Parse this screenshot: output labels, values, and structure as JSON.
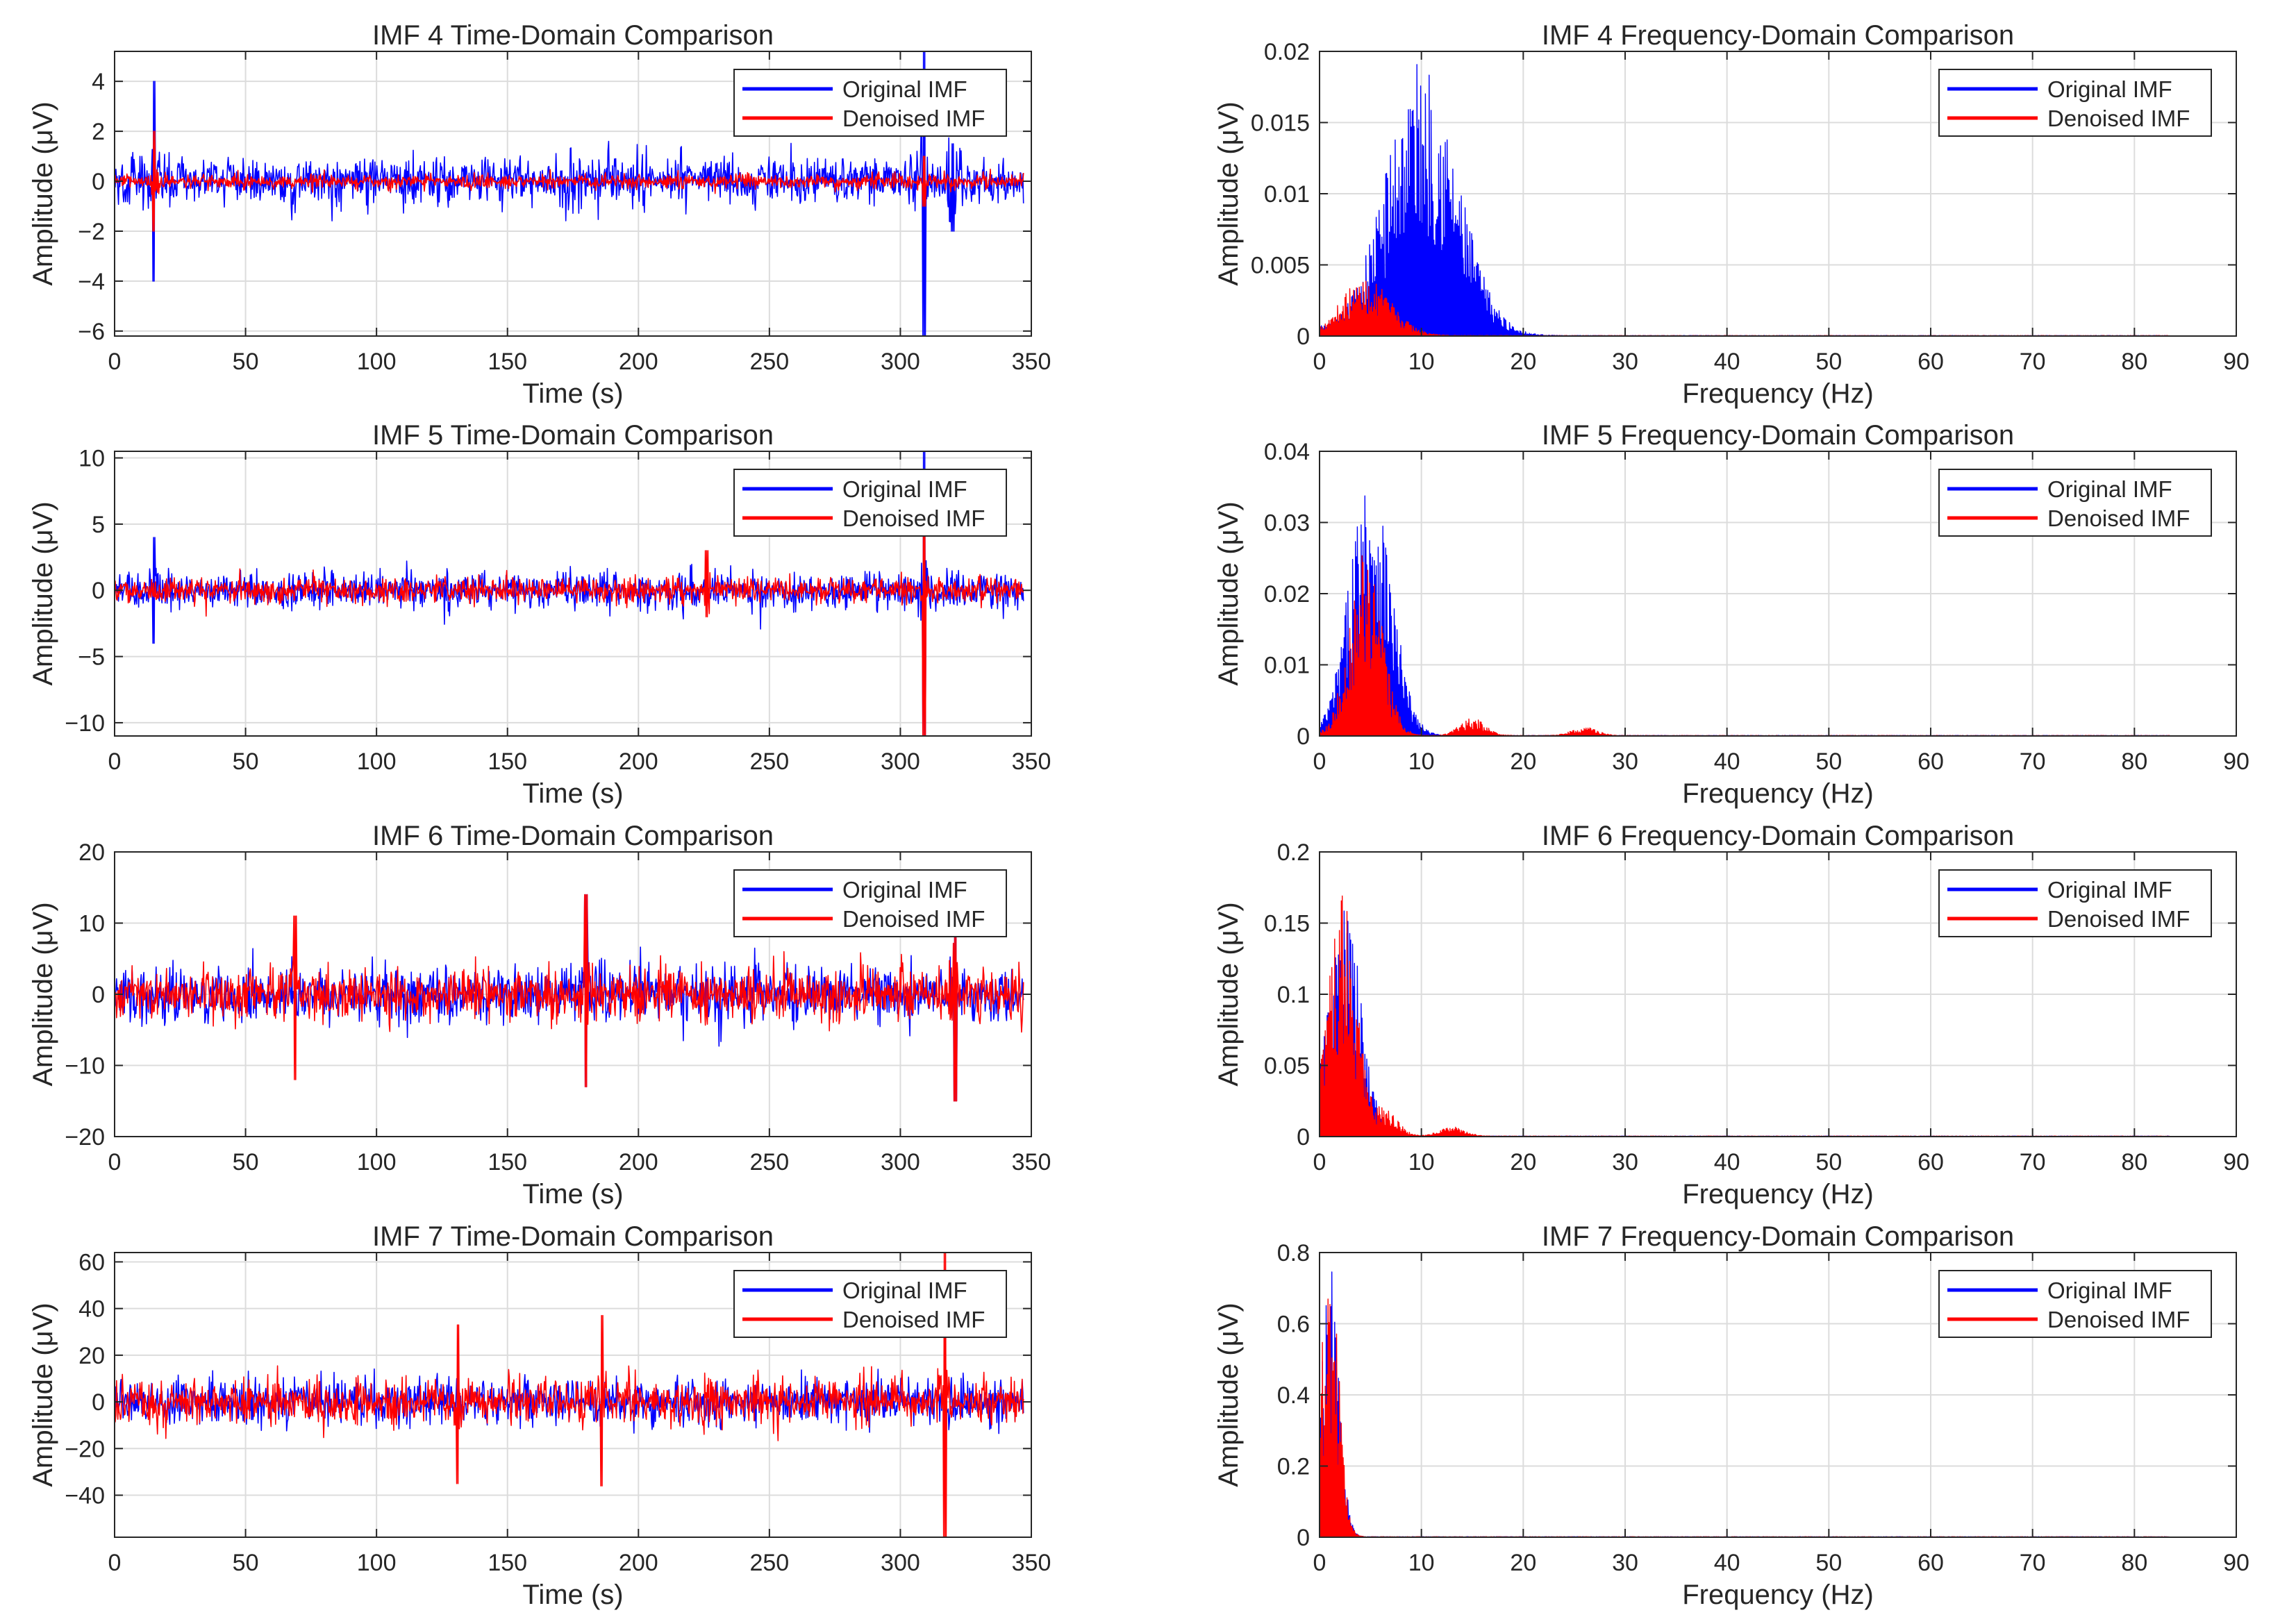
{
  "colors": {
    "original": "#0000FF",
    "denoised": "#FF0000",
    "grid": "#DCDCDC",
    "axis": "#262626"
  },
  "chart_data": [
    {
      "id": "imf4-time",
      "type": "line",
      "title": "IMF 4 Time-Domain Comparison",
      "xlabel": "Time (s)",
      "ylabel": "Amplitude (μV)",
      "xlim": [
        0,
        350
      ],
      "ylim": [
        -6.2,
        5.2
      ],
      "xticks": [
        0,
        50,
        100,
        150,
        200,
        250,
        300,
        350
      ],
      "yticks": [
        -6,
        -4,
        -2,
        0,
        2,
        4
      ],
      "ytick_labels": [
        "−6",
        "−4",
        "−2",
        "0",
        "2",
        "4"
      ],
      "grid": true,
      "legend_position": "top-right",
      "signal_extent": [
        0,
        347
      ],
      "series": [
        {
          "name": "Original IMF",
          "color": "#0000FF",
          "typical_amplitude": 1.0,
          "events": [
            {
              "x": 15,
              "peak": 4.0,
              "trough": -4.0
            },
            {
              "x": 309,
              "peak": 5.2,
              "trough": -6.2
            },
            {
              "x": 320,
              "peak": 1.5,
              "trough": -2.0
            }
          ]
        },
        {
          "name": "Denoised IMF",
          "color": "#FF0000",
          "typical_amplitude": 0.3,
          "events": [
            {
              "x": 15,
              "peak": 2.0,
              "trough": -2.0
            },
            {
              "x": 309,
              "peak": 1.0,
              "trough": -1.0
            }
          ]
        }
      ]
    },
    {
      "id": "imf4-freq",
      "type": "area",
      "title": "IMF 4 Frequency-Domain Comparison",
      "xlabel": "Frequency (Hz)",
      "ylabel": "Amplitude (μV)",
      "xlim": [
        0,
        90
      ],
      "ylim": [
        0,
        0.02
      ],
      "xticks": [
        0,
        10,
        20,
        30,
        40,
        50,
        60,
        70,
        80,
        90
      ],
      "yticks": [
        0,
        0.005,
        0.01,
        0.015,
        0.02
      ],
      "ytick_labels": [
        "0",
        "0.005",
        "0.01",
        "0.015",
        "0.02"
      ],
      "grid": true,
      "legend_position": "top-right",
      "signal_extent": [
        0,
        83.5
      ],
      "series": [
        {
          "name": "Original IMF",
          "color": "#0000FF",
          "peak_frequency": 10,
          "peak_amplitude": 0.0195,
          "width": 3.5
        },
        {
          "name": "Denoised IMF",
          "color": "#FF0000",
          "peak_frequency": 4.5,
          "peak_amplitude": 0.004,
          "width": 2.5
        }
      ]
    },
    {
      "id": "imf5-time",
      "type": "line",
      "title": "IMF 5 Time-Domain Comparison",
      "xlabel": "Time (s)",
      "ylabel": "Amplitude (μV)",
      "xlim": [
        0,
        350
      ],
      "ylim": [
        -11,
        10.5
      ],
      "xticks": [
        0,
        50,
        100,
        150,
        200,
        250,
        300,
        350
      ],
      "yticks": [
        -10,
        -5,
        0,
        5,
        10
      ],
      "ytick_labels": [
        "−10",
        "−5",
        "0",
        "5",
        "10"
      ],
      "grid": true,
      "legend_position": "top-right",
      "signal_extent": [
        0,
        347
      ],
      "series": [
        {
          "name": "Original IMF",
          "color": "#0000FF",
          "typical_amplitude": 1.5,
          "events": [
            {
              "x": 15,
              "peak": 4.0,
              "trough": -4.0
            },
            {
              "x": 309,
              "peak": 10.5,
              "trough": -11.0
            }
          ]
        },
        {
          "name": "Denoised IMF",
          "color": "#FF0000",
          "typical_amplitude": 1.0,
          "events": [
            {
              "x": 309,
              "peak": 8.0,
              "trough": -11.0
            },
            {
              "x": 226,
              "peak": 3.0,
              "trough": -2.0
            }
          ]
        }
      ]
    },
    {
      "id": "imf5-freq",
      "type": "area",
      "title": "IMF 5 Frequency-Domain Comparison",
      "xlabel": "Frequency (Hz)",
      "ylabel": "Amplitude (μV)",
      "xlim": [
        0,
        90
      ],
      "ylim": [
        0,
        0.04
      ],
      "xticks": [
        0,
        10,
        20,
        30,
        40,
        50,
        60,
        70,
        80,
        90
      ],
      "yticks": [
        0,
        0.01,
        0.02,
        0.03,
        0.04
      ],
      "ytick_labels": [
        "0",
        "0.01",
        "0.02",
        "0.03",
        "0.04"
      ],
      "grid": true,
      "legend_position": "top-right",
      "signal_extent": [
        0,
        83.5
      ],
      "series": [
        {
          "name": "Original IMF",
          "color": "#0000FF",
          "peak_frequency": 5,
          "peak_amplitude": 0.039,
          "width": 2.0
        },
        {
          "name": "Denoised IMF",
          "color": "#FF0000",
          "peak_frequency": 4.5,
          "peak_amplitude": 0.026,
          "width": 1.6,
          "bumps": [
            {
              "f": 15,
              "a": 0.0025
            },
            {
              "f": 26,
              "a": 0.0012
            }
          ]
        }
      ]
    },
    {
      "id": "imf6-time",
      "type": "line",
      "title": "IMF 6 Time-Domain Comparison",
      "xlabel": "Time (s)",
      "ylabel": "Amplitude (μV)",
      "xlim": [
        0,
        350
      ],
      "ylim": [
        -20,
        20
      ],
      "xticks": [
        0,
        50,
        100,
        150,
        200,
        250,
        300,
        350
      ],
      "yticks": [
        -20,
        -10,
        0,
        10,
        20
      ],
      "ytick_labels": [
        "−20",
        "−10",
        "0",
        "10",
        "20"
      ],
      "grid": true,
      "legend_position": "top-right",
      "signal_extent": [
        0,
        347
      ],
      "series": [
        {
          "name": "Original IMF",
          "color": "#0000FF",
          "typical_amplitude": 4.0,
          "events": [
            {
              "x": 180,
              "peak": 14.0,
              "trough": -13.0
            },
            {
              "x": 321,
              "peak": 10.0,
              "trough": -15.0
            }
          ]
        },
        {
          "name": "Denoised IMF",
          "color": "#FF0000",
          "typical_amplitude": 3.8,
          "events": [
            {
              "x": 180,
              "peak": 14.0,
              "trough": -13.0
            },
            {
              "x": 321,
              "peak": 8.0,
              "trough": -15.0
            },
            {
              "x": 69,
              "peak": 11.0,
              "trough": -12.0
            }
          ]
        }
      ]
    },
    {
      "id": "imf6-freq",
      "type": "area",
      "title": "IMF 6 Frequency-Domain Comparison",
      "xlabel": "Frequency (Hz)",
      "ylabel": "Amplitude (μV)",
      "xlim": [
        0,
        90
      ],
      "ylim": [
        0,
        0.2
      ],
      "xticks": [
        0,
        10,
        20,
        30,
        40,
        50,
        60,
        70,
        80,
        90
      ],
      "yticks": [
        0,
        0.05,
        0.1,
        0.15,
        0.2
      ],
      "ytick_labels": [
        "0",
        "0.05",
        "0.1",
        "0.15",
        "0.2"
      ],
      "grid": true,
      "legend_position": "top-right",
      "signal_extent": [
        0,
        83.5
      ],
      "series": [
        {
          "name": "Original IMF",
          "color": "#0000FF",
          "peak_frequency": 2.5,
          "peak_amplitude": 0.16,
          "width": 1.6
        },
        {
          "name": "Denoised IMF",
          "color": "#FF0000",
          "peak_frequency": 2.2,
          "peak_amplitude": 0.17,
          "width": 1.4,
          "bumps": [
            {
              "f": 6.5,
              "a": 0.018
            },
            {
              "f": 13,
              "a": 0.007
            }
          ]
        }
      ]
    },
    {
      "id": "imf7-time",
      "type": "line",
      "title": "IMF 7 Time-Domain Comparison",
      "xlabel": "Time (s)",
      "ylabel": "Amplitude (μV)",
      "xlim": [
        0,
        350
      ],
      "ylim": [
        -58,
        64
      ],
      "xticks": [
        0,
        50,
        100,
        150,
        200,
        250,
        300,
        350
      ],
      "yticks": [
        -40,
        -20,
        0,
        20,
        40,
        60
      ],
      "ytick_labels": [
        "−40",
        "−20",
        "0",
        "20",
        "40",
        "60"
      ],
      "grid": true,
      "legend_position": "top-right",
      "signal_extent": [
        0,
        347
      ],
      "series": [
        {
          "name": "Original IMF",
          "color": "#0000FF",
          "typical_amplitude": 10.0,
          "events": []
        },
        {
          "name": "Denoised IMF",
          "color": "#FF0000",
          "typical_amplitude": 10.0,
          "events": [
            {
              "x": 317,
              "peak": 64.0,
              "trough": -58.0
            },
            {
              "x": 131,
              "peak": 33.0,
              "trough": -35.0
            },
            {
              "x": 186,
              "peak": 37.0,
              "trough": -36.0
            }
          ]
        }
      ]
    },
    {
      "id": "imf7-freq",
      "type": "area",
      "title": "IMF 7 Frequency-Domain Comparison",
      "xlabel": "Frequency (Hz)",
      "ylabel": "Amplitude (μV)",
      "xlim": [
        0,
        90
      ],
      "ylim": [
        0,
        0.8
      ],
      "xticks": [
        0,
        10,
        20,
        30,
        40,
        50,
        60,
        70,
        80,
        90
      ],
      "yticks": [
        0,
        0.2,
        0.4,
        0.6,
        0.8
      ],
      "ytick_labels": [
        "0",
        "0.2",
        "0.4",
        "0.6",
        "0.8"
      ],
      "grid": true,
      "legend_position": "top-right",
      "signal_extent": [
        0,
        83.5
      ],
      "series": [
        {
          "name": "Original IMF",
          "color": "#0000FF",
          "peak_frequency": 1.0,
          "peak_amplitude": 0.77,
          "width": 0.9
        },
        {
          "name": "Denoised IMF",
          "color": "#FF0000",
          "peak_frequency": 1.0,
          "peak_amplitude": 0.77,
          "width": 0.9
        }
      ]
    }
  ]
}
